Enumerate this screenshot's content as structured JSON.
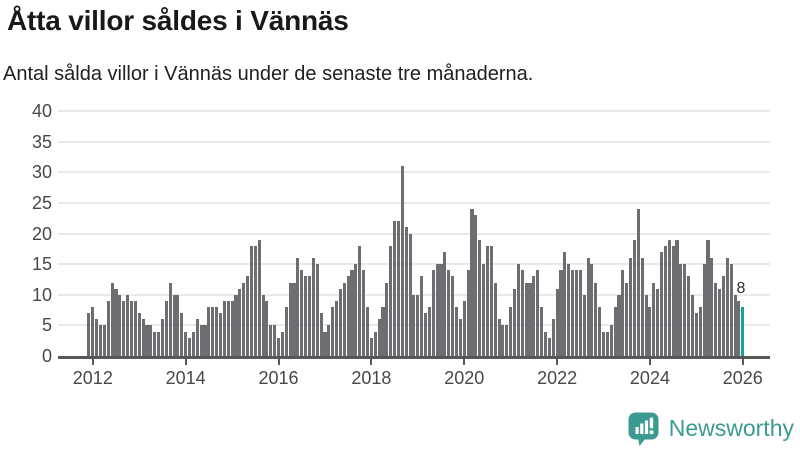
{
  "header": {
    "title": "Åtta villor såldes i Vännäs",
    "subtitle": "Antal sålda villor i Vännäs under de senaste tre månaderna."
  },
  "chart_data": {
    "type": "bar",
    "title": "Åtta villor såldes i Vännäs",
    "subtitle": "Antal sålda villor i Vännäs under de senaste tre månaderna.",
    "y_axis": {
      "range": [
        0,
        40
      ],
      "ticks": [
        0,
        5,
        10,
        15,
        20,
        25,
        30,
        35,
        40
      ],
      "grid": true
    },
    "x_axis": {
      "tick_labels": [
        "2012",
        "2014",
        "2016",
        "2018",
        "2020",
        "2022",
        "2024",
        "2026"
      ],
      "interval": "monthly",
      "start_month": "2011-12"
    },
    "values": [
      7,
      8,
      6,
      5,
      5,
      9,
      12,
      11,
      10,
      9,
      10,
      9,
      9,
      7,
      6,
      5,
      5,
      4,
      4,
      6,
      9,
      12,
      10,
      10,
      7,
      4,
      3,
      4,
      6,
      5,
      5,
      8,
      8,
      8,
      7,
      9,
      9,
      9,
      10,
      11,
      12,
      13,
      18,
      18,
      19,
      10,
      9,
      5,
      5,
      3,
      4,
      8,
      12,
      12,
      16,
      14,
      13,
      13,
      16,
      15,
      7,
      4,
      5,
      8,
      9,
      11,
      12,
      13,
      14,
      15,
      18,
      14,
      8,
      3,
      4,
      6,
      8,
      12,
      18,
      22,
      22,
      31,
      21,
      20,
      10,
      10,
      13,
      7,
      8,
      14,
      15,
      15,
      17,
      14,
      13,
      8,
      6,
      9,
      14,
      24,
      23,
      19,
      15,
      18,
      18,
      12,
      6,
      5,
      5,
      8,
      11,
      15,
      14,
      12,
      12,
      13,
      14,
      8,
      4,
      3,
      6,
      11,
      14,
      17,
      15,
      14,
      14,
      14,
      10,
      16,
      15,
      12,
      8,
      4,
      4,
      5,
      8,
      10,
      14,
      12,
      16,
      19,
      24,
      16,
      10,
      8,
      12,
      11,
      17,
      18,
      19,
      18,
      19,
      15,
      15,
      13,
      10,
      7,
      8,
      15,
      19,
      16,
      12,
      11,
      13,
      16,
      15,
      10,
      9,
      8
    ],
    "highlight": {
      "index": 169,
      "value": 8,
      "label": "8"
    },
    "colors": {
      "bar": "#6d6e72",
      "highlight": "#13a29b",
      "grid": "#e9e9eb",
      "axis": "#55575b",
      "tick_text": "#46484c"
    },
    "legend": null
  },
  "footer": {
    "brand": "Newsworthy",
    "brand_color": "#3b9b93"
  }
}
